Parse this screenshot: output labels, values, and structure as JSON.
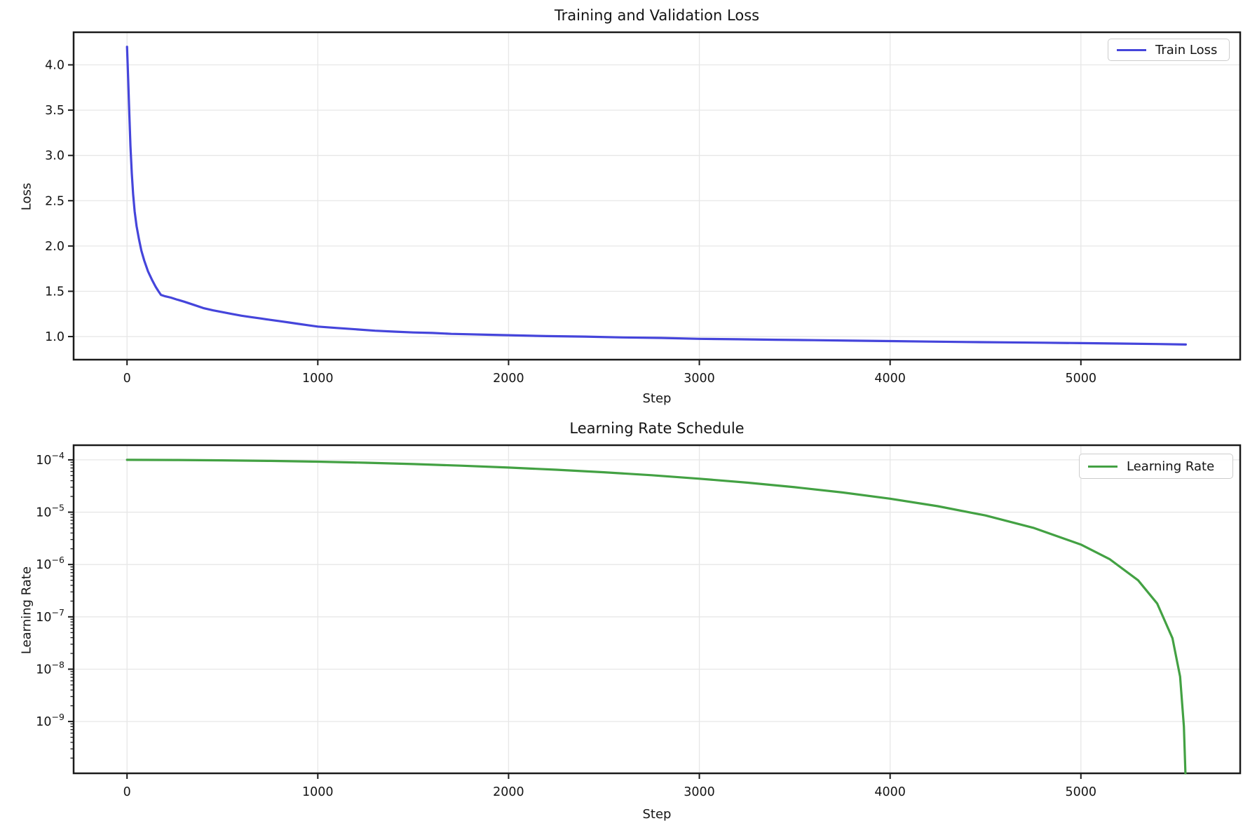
{
  "figure": {
    "background": "#ffffff",
    "text_color": "#141414",
    "grid_color": "#e7e7e7",
    "spine_color": "#1b1b1b"
  },
  "chart_data": [
    {
      "type": "line",
      "title": "Training and Validation Loss",
      "xlabel": "Step",
      "ylabel": "Loss",
      "legend": [
        "Train Loss"
      ],
      "legend_position": "upper right",
      "grid": true,
      "yscale": "linear",
      "xlim": [
        -280,
        5835
      ],
      "ylim": [
        0.745,
        4.36
      ],
      "x_ticks": [
        0,
        1000,
        2000,
        3000,
        4000,
        5000
      ],
      "y_ticks": [
        1.0,
        1.5,
        2.0,
        2.5,
        3.0,
        3.5,
        4.0
      ],
      "series": [
        {
          "name": "Train Loss",
          "color": "#4545db",
          "x": [
            0,
            6,
            12,
            18,
            25,
            32,
            40,
            50,
            62,
            75,
            90,
            110,
            130,
            150,
            165,
            178,
            200,
            230,
            260,
            300,
            350,
            400,
            450,
            500,
            550,
            600,
            650,
            700,
            750,
            800,
            850,
            900,
            950,
            1000,
            1100,
            1200,
            1300,
            1400,
            1500,
            1600,
            1700,
            1800,
            1900,
            2000,
            2200,
            2400,
            2600,
            2800,
            3000,
            3200,
            3400,
            3600,
            3800,
            4000,
            4200,
            4400,
            4600,
            4800,
            5000,
            5200,
            5400,
            5550
          ],
          "y": [
            4.2,
            3.85,
            3.45,
            3.1,
            2.8,
            2.57,
            2.38,
            2.22,
            2.08,
            1.95,
            1.84,
            1.72,
            1.63,
            1.55,
            1.5,
            1.46,
            1.445,
            1.43,
            1.41,
            1.385,
            1.35,
            1.315,
            1.29,
            1.27,
            1.25,
            1.23,
            1.215,
            1.2,
            1.185,
            1.17,
            1.155,
            1.14,
            1.125,
            1.11,
            1.095,
            1.08,
            1.065,
            1.055,
            1.045,
            1.04,
            1.03,
            1.025,
            1.02,
            1.015,
            1.005,
            1.0,
            0.99,
            0.985,
            0.975,
            0.97,
            0.965,
            0.96,
            0.955,
            0.95,
            0.945,
            0.94,
            0.936,
            0.932,
            0.928,
            0.923,
            0.918,
            0.912
          ]
        }
      ]
    },
    {
      "type": "line",
      "title": "Learning Rate Schedule",
      "xlabel": "Step",
      "ylabel": "Learning Rate",
      "legend": [
        "Learning Rate"
      ],
      "legend_position": "upper right",
      "grid": true,
      "yscale": "log",
      "xlim": [
        -280,
        5835
      ],
      "ylim_log10": [
        -9.99,
        -3.72
      ],
      "x_ticks": [
        0,
        1000,
        2000,
        3000,
        4000,
        5000
      ],
      "y_tick_exponents": [
        -4,
        -5,
        -6,
        -7,
        -8,
        -9
      ],
      "series": [
        {
          "name": "Learning Rate",
          "color": "#43a143",
          "x": [
            0,
            250,
            500,
            750,
            1000,
            1250,
            1500,
            1750,
            2000,
            2250,
            2500,
            2750,
            3000,
            3250,
            3500,
            3750,
            4000,
            4250,
            4500,
            4750,
            5000,
            5150,
            5300,
            5400,
            5480,
            5520,
            5540,
            5548
          ],
          "y": [
            0.0001,
            9.95e-05,
            9.8e-05,
            9.56e-05,
            9.22e-05,
            8.8e-05,
            8.3e-05,
            7.74e-05,
            7.13e-05,
            6.48e-05,
            5.79e-05,
            5.09e-05,
            4.36e-05,
            3.67e-05,
            3e-05,
            2.38e-05,
            1.81e-05,
            1.3e-05,
            8.65e-06,
            5.04e-06,
            2.41e-06,
            1.27e-06,
            5e-07,
            1.8e-07,
            3.9e-08,
            7.2e-09,
            8e-10,
            5e-11
          ]
        }
      ]
    }
  ]
}
